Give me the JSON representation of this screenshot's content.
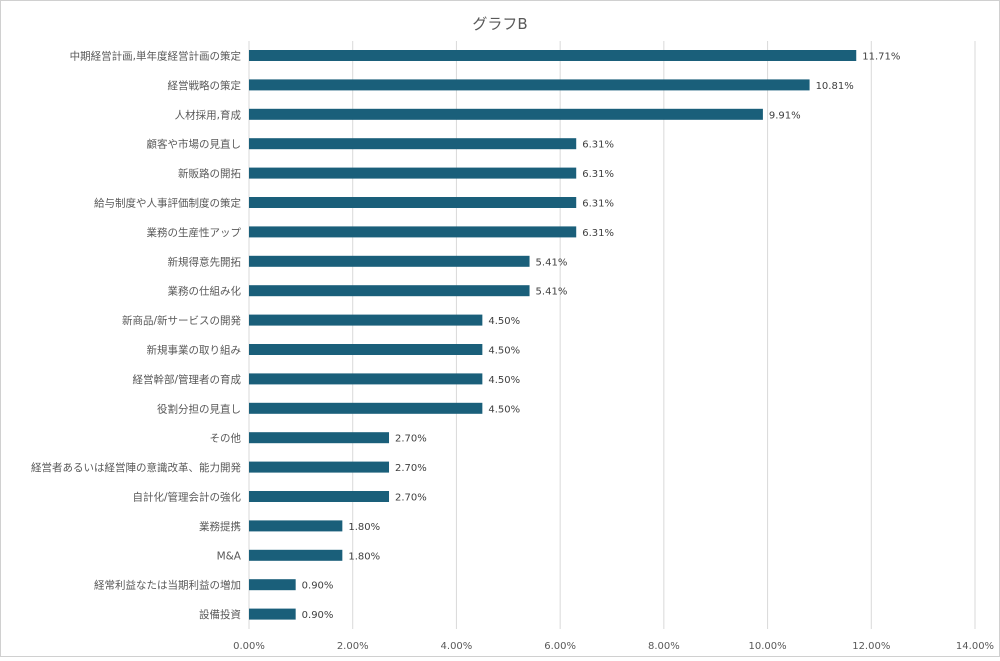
{
  "chart_data": {
    "type": "bar",
    "orientation": "horizontal",
    "title": "グラフB",
    "xlabel": "",
    "ylabel": "",
    "xlim": [
      0,
      14
    ],
    "x_ticks": [
      "0.00%",
      "2.00%",
      "4.00%",
      "6.00%",
      "8.00%",
      "10.00%",
      "12.00%",
      "14.00%"
    ],
    "grid": true,
    "bar_color": "#1a5f7a",
    "categories": [
      "中期経営計画,単年度経営計画の策定",
      "経営戦略の策定",
      "人材採用,育成",
      "顧客や市場の見直し",
      "新販路の開拓",
      "給与制度や人事評価制度の策定",
      "業務の生産性アップ",
      "新規得意先開拓",
      "業務の仕組み化",
      "新商品/新サービスの開発",
      "新規事業の取り組み",
      "経営幹部/管理者の育成",
      "役割分担の見直し",
      "その他",
      "経営者あるいは経営陣の意識改革、能力開発",
      "自計化/管理会計の強化",
      "業務提携",
      "M&A",
      "経常利益なたは当期利益の増加",
      "設備投資"
    ],
    "values": [
      11.71,
      10.81,
      9.91,
      6.31,
      6.31,
      6.31,
      6.31,
      5.41,
      5.41,
      4.5,
      4.5,
      4.5,
      4.5,
      2.7,
      2.7,
      2.7,
      1.8,
      1.8,
      0.9,
      0.9
    ],
    "value_labels": [
      "11.71%",
      "10.81%",
      "9.91%",
      "6.31%",
      "6.31%",
      "6.31%",
      "6.31%",
      "5.41%",
      "5.41%",
      "4.50%",
      "4.50%",
      "4.50%",
      "4.50%",
      "2.70%",
      "2.70%",
      "2.70%",
      "1.80%",
      "1.80%",
      "0.90%",
      "0.90%"
    ]
  }
}
